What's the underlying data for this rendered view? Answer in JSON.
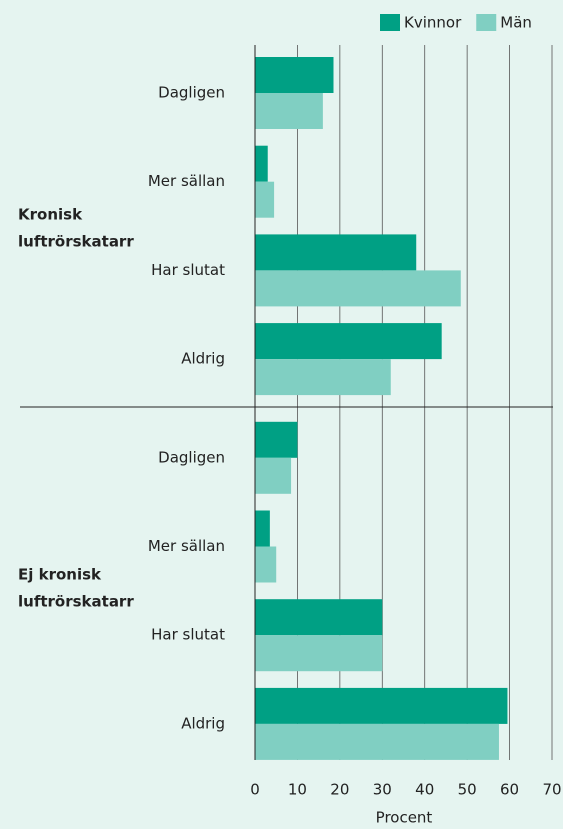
{
  "chart_data": {
    "type": "bar",
    "orientation": "horizontal",
    "groups": [
      {
        "label": [
          "Kronisk",
          "luftrörskatarr"
        ],
        "categories": [
          "Dagligen",
          "Mer sällan",
          "Har slutat",
          "Aldrig"
        ]
      },
      {
        "label": [
          "Ej kronisk",
          "luftrörskatarr"
        ],
        "categories": [
          "Dagligen",
          "Mer sällan",
          "Har slutat",
          "Aldrig"
        ]
      }
    ],
    "series": [
      {
        "name": "Kvinnor",
        "color": "#00a084",
        "values": [
          [
            18.5,
            3,
            38,
            44
          ],
          [
            10,
            3.5,
            30,
            59.5
          ]
        ]
      },
      {
        "name": "Män",
        "color": "#80cfc2",
        "values": [
          [
            16,
            4.5,
            48.5,
            32
          ],
          [
            8.5,
            5,
            30,
            57.5
          ]
        ]
      }
    ],
    "xlim": [
      0,
      70
    ],
    "xticks": [
      0,
      10,
      20,
      30,
      40,
      50,
      60,
      70
    ],
    "xlabel": "Procent",
    "grid": true,
    "legend": "top-right"
  }
}
